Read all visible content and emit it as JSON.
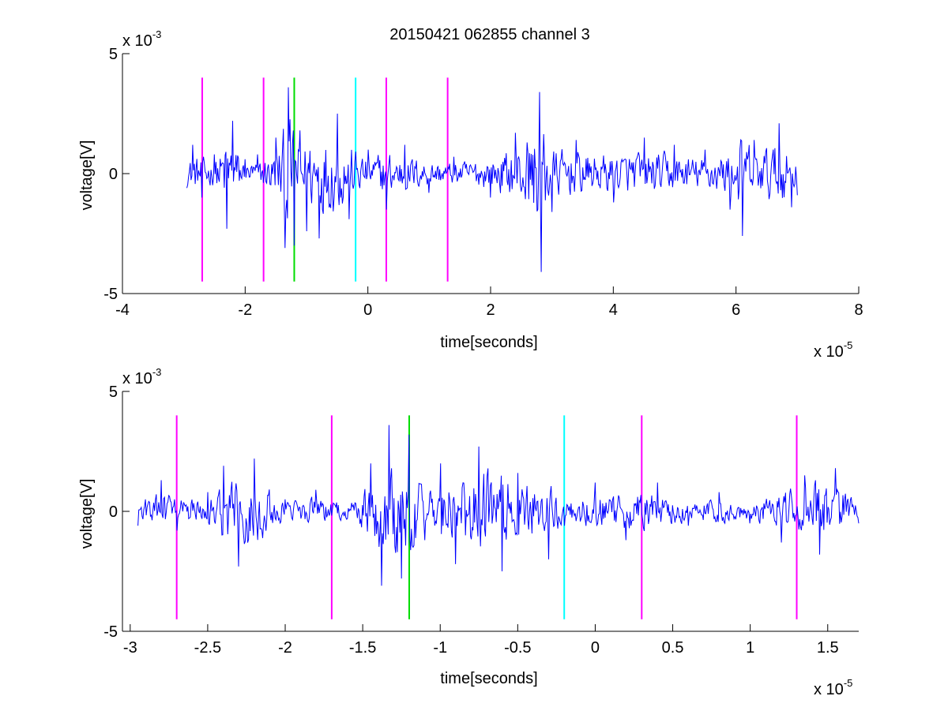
{
  "figure": {
    "title": "20150421 062855 channel 3"
  },
  "colors": {
    "signal": "#0000ff",
    "marker_magenta": "#ff00ff",
    "marker_green": "#00dd00",
    "marker_cyan": "#00ffff",
    "axes": "#000000",
    "background": "#ffffff"
  },
  "chart_data": [
    {
      "type": "line",
      "title": "20150421 062855 channel 3",
      "xlabel": "time[seconds]",
      "ylabel": "voltage[V]",
      "x_exponent": "x 10",
      "x_exponent_power": "-5",
      "y_exponent": "x 10",
      "y_exponent_power": "-3",
      "xlim": [
        -4,
        8
      ],
      "ylim": [
        -5,
        5
      ],
      "xticks": [
        -4,
        -2,
        0,
        2,
        4,
        6,
        8
      ],
      "xtick_labels": [
        "-4",
        "-2",
        "0",
        "2",
        "4",
        "6",
        "8"
      ],
      "yticks": [
        -5,
        0,
        5
      ],
      "ytick_labels": [
        "-5",
        "0",
        "5"
      ],
      "grid": false,
      "series": [
        {
          "color": "#0000ff",
          "x_range": [
            -2.95,
            7.0
          ],
          "keypoints": [
            [
              -2.95,
              -0.6
            ],
            [
              -2.85,
              1.2
            ],
            [
              -2.7,
              -1.0
            ],
            [
              -2.5,
              0.8
            ],
            [
              -2.3,
              -2.3
            ],
            [
              -2.2,
              2.2
            ],
            [
              -2.0,
              0.6
            ],
            [
              -1.8,
              0.8
            ],
            [
              -1.5,
              1.5
            ],
            [
              -1.35,
              -3.1
            ],
            [
              -1.3,
              3.6
            ],
            [
              -1.2,
              -3.0
            ],
            [
              -1.1,
              1.8
            ],
            [
              -1.0,
              -2.4
            ],
            [
              -0.8,
              -2.7
            ],
            [
              -0.5,
              2.5
            ],
            [
              -0.3,
              -1.9
            ],
            [
              0.0,
              1.0
            ],
            [
              0.3,
              -1.5
            ],
            [
              0.6,
              1.2
            ],
            [
              1.0,
              -0.8
            ],
            [
              1.4,
              0.7
            ],
            [
              2.0,
              -1.0
            ],
            [
              2.4,
              1.7
            ],
            [
              2.8,
              3.4
            ],
            [
              2.82,
              -4.1
            ],
            [
              3.0,
              -1.6
            ],
            [
              3.4,
              1.4
            ],
            [
              4.0,
              -1.2
            ],
            [
              4.5,
              1.5
            ],
            [
              5.0,
              1.2
            ],
            [
              5.5,
              1.0
            ],
            [
              5.9,
              -1.5
            ],
            [
              6.1,
              -2.6
            ],
            [
              6.3,
              1.4
            ],
            [
              6.7,
              2.1
            ],
            [
              6.9,
              -1.4
            ],
            [
              7.0,
              -0.9
            ]
          ]
        }
      ],
      "markers": [
        {
          "x": -2.7,
          "color": "magenta",
          "ylim": [
            -4.5,
            4
          ]
        },
        {
          "x": -1.7,
          "color": "magenta",
          "ylim": [
            -4.5,
            4
          ]
        },
        {
          "x": -1.2,
          "color": "green",
          "ylim": [
            -4.5,
            4
          ]
        },
        {
          "x": -0.2,
          "color": "cyan",
          "ylim": [
            -4.5,
            4
          ]
        },
        {
          "x": 0.3,
          "color": "magenta",
          "ylim": [
            -4.5,
            4
          ]
        },
        {
          "x": 1.3,
          "color": "magenta",
          "ylim": [
            -4.5,
            4
          ]
        }
      ]
    },
    {
      "type": "line",
      "title": "",
      "xlabel": "time[seconds]",
      "ylabel": "voltage[V]",
      "x_exponent": "x 10",
      "x_exponent_power": "-5",
      "y_exponent": "x 10",
      "y_exponent_power": "-3",
      "xlim": [
        -3.05,
        1.7
      ],
      "ylim": [
        -5,
        5
      ],
      "xticks": [
        -3,
        -2.5,
        -2,
        -1.5,
        -1,
        -0.5,
        0,
        0.5,
        1,
        1.5
      ],
      "xtick_labels": [
        "-3",
        "-2.5",
        "-2",
        "-1.5",
        "-1",
        "-0.5",
        "0",
        "0.5",
        "1",
        "1.5"
      ],
      "yticks": [
        -5,
        0,
        5
      ],
      "ytick_labels": [
        "-5",
        "0",
        "5"
      ],
      "grid": false,
      "series": [
        {
          "color": "#0000ff",
          "x_range": [
            -2.95,
            1.7
          ],
          "keypoints": [
            [
              -2.95,
              -0.6
            ],
            [
              -2.9,
              0.5
            ],
            [
              -2.8,
              1.3
            ],
            [
              -2.7,
              -0.8
            ],
            [
              -2.5,
              0.8
            ],
            [
              -2.4,
              1.9
            ],
            [
              -2.3,
              -2.3
            ],
            [
              -2.2,
              2.2
            ],
            [
              -2.0,
              0.5
            ],
            [
              -1.8,
              0.9
            ],
            [
              -1.6,
              -0.3
            ],
            [
              -1.45,
              2.0
            ],
            [
              -1.38,
              -3.1
            ],
            [
              -1.33,
              3.6
            ],
            [
              -1.25,
              -2.8
            ],
            [
              -1.2,
              3.2
            ],
            [
              -1.1,
              -1.2
            ],
            [
              -1.0,
              2.0
            ],
            [
              -0.9,
              -2.2
            ],
            [
              -0.75,
              2.7
            ],
            [
              -0.6,
              -2.5
            ],
            [
              -0.5,
              1.6
            ],
            [
              -0.3,
              -2.0
            ],
            [
              -0.2,
              -0.6
            ],
            [
              0.0,
              1.2
            ],
            [
              0.2,
              -1.2
            ],
            [
              0.4,
              1.2
            ],
            [
              0.6,
              -0.6
            ],
            [
              0.8,
              0.8
            ],
            [
              1.0,
              -0.5
            ],
            [
              1.2,
              -1.3
            ],
            [
              1.35,
              1.5
            ],
            [
              1.45,
              -1.8
            ],
            [
              1.55,
              1.8
            ],
            [
              1.7,
              -0.5
            ]
          ]
        }
      ],
      "markers": [
        {
          "x": -2.7,
          "color": "magenta",
          "ylim": [
            -4.5,
            4
          ]
        },
        {
          "x": -1.7,
          "color": "magenta",
          "ylim": [
            -4.5,
            4
          ]
        },
        {
          "x": -1.2,
          "color": "green",
          "ylim": [
            -4.5,
            4
          ]
        },
        {
          "x": -0.2,
          "color": "cyan",
          "ylim": [
            -4.5,
            4
          ]
        },
        {
          "x": 0.3,
          "color": "magenta",
          "ylim": [
            -4.5,
            4
          ]
        },
        {
          "x": 1.3,
          "color": "magenta",
          "ylim": [
            -4.5,
            4
          ]
        }
      ]
    }
  ]
}
